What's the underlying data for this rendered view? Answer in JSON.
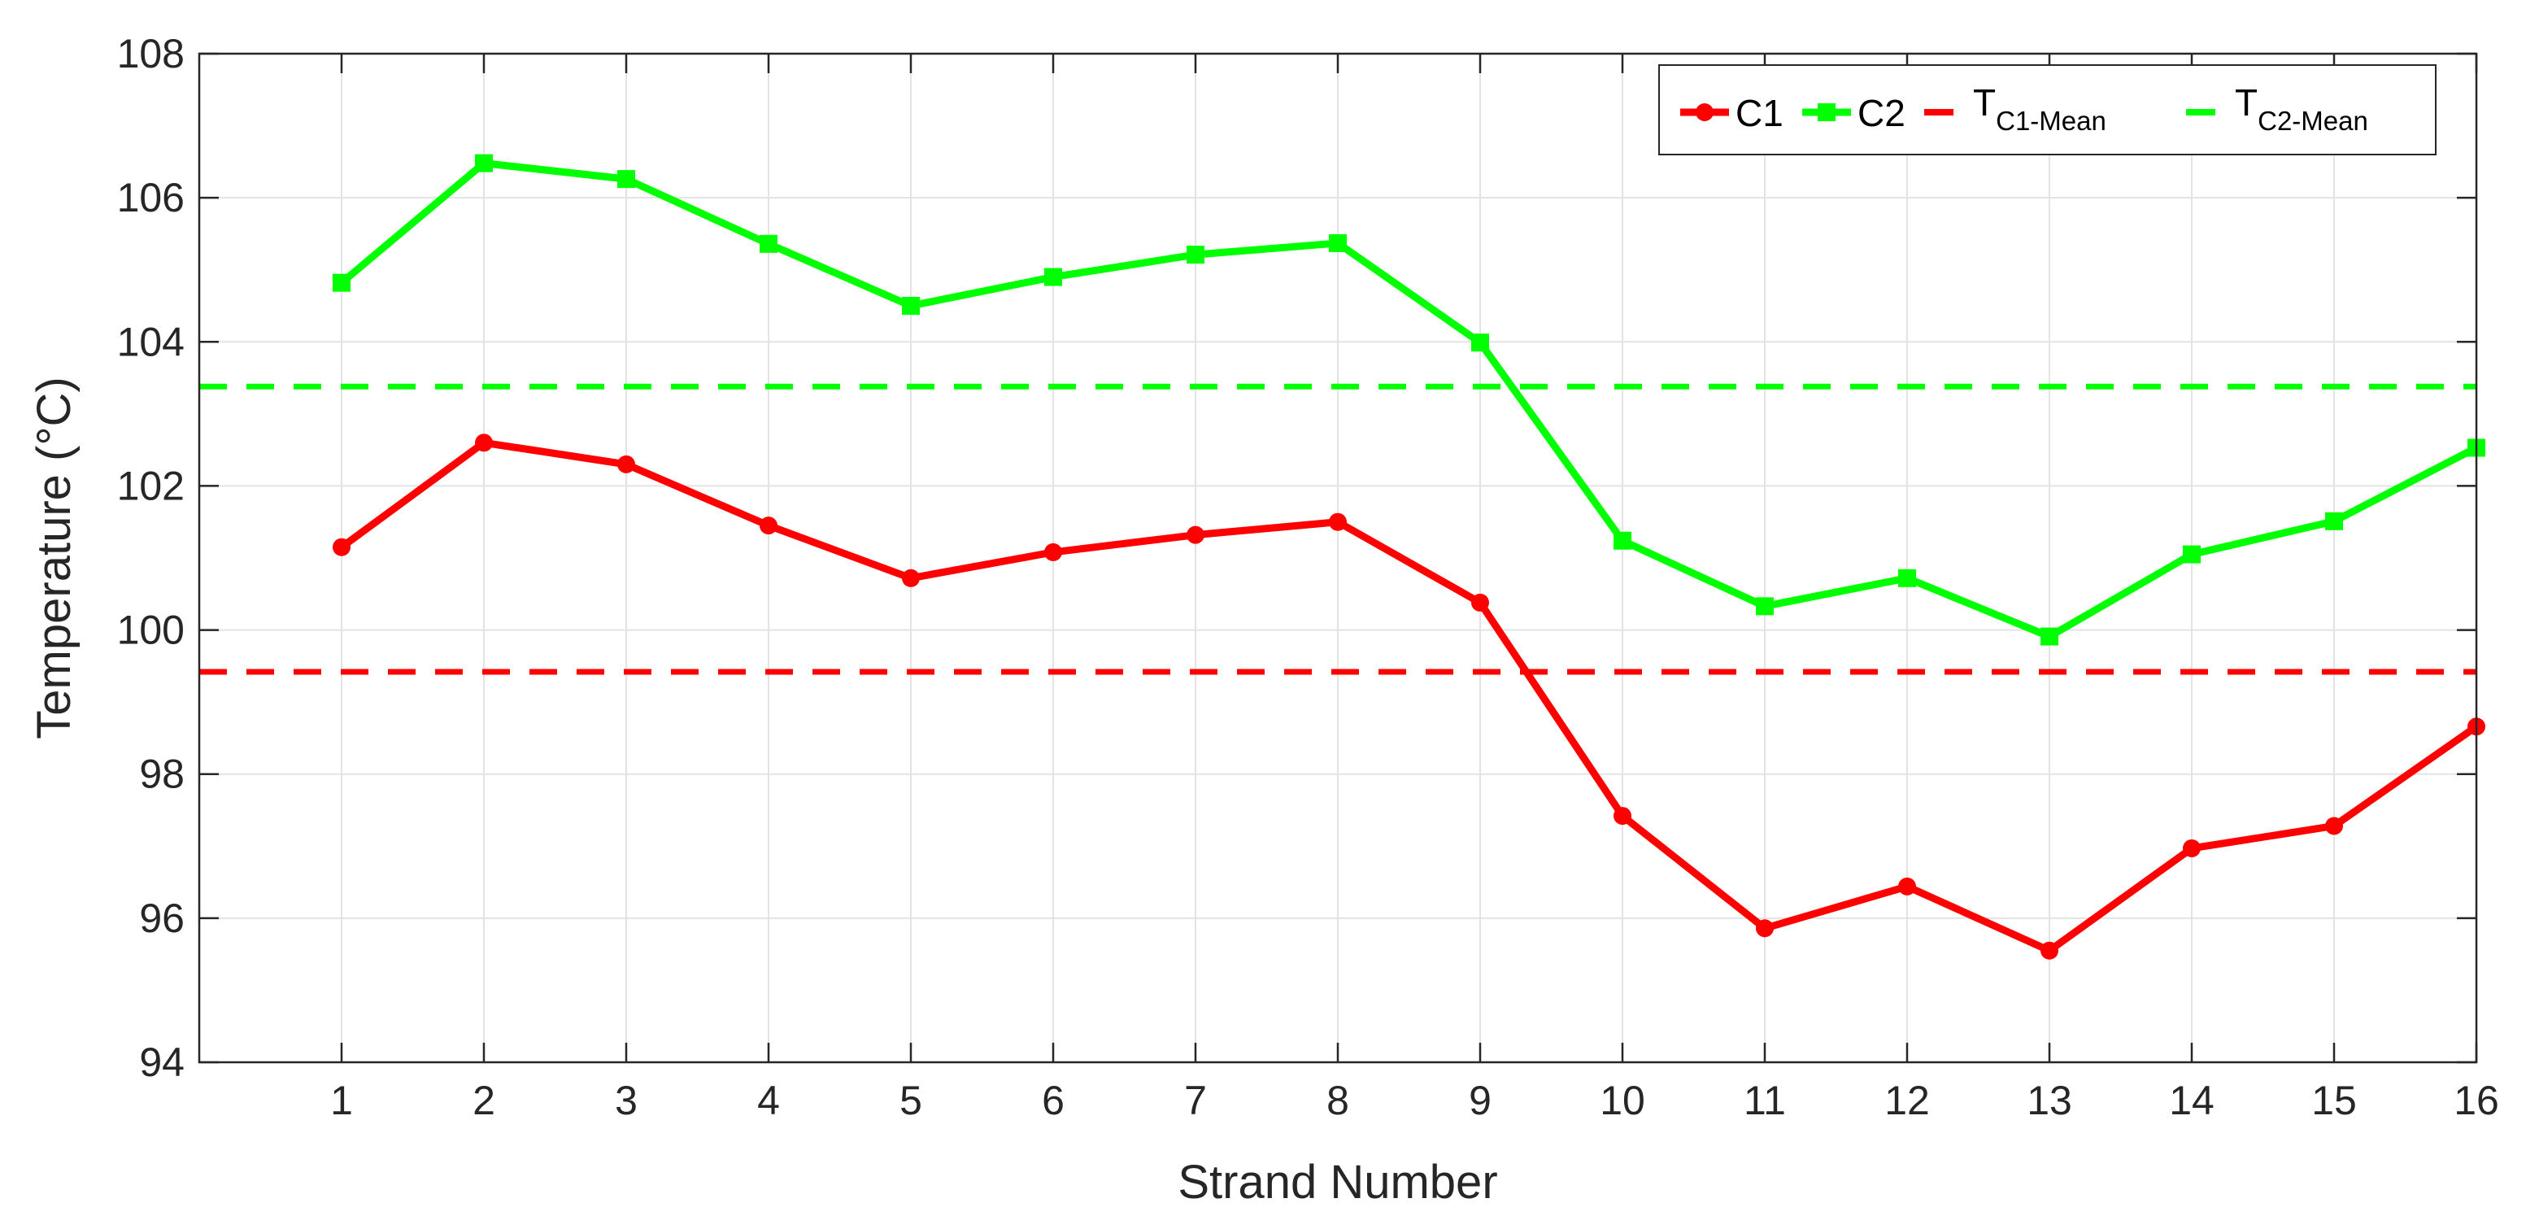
{
  "chart_data": {
    "type": "line",
    "xlabel": "Strand Number",
    "ylabel": "Temperature (°C)",
    "xlim": [
      0,
      16
    ],
    "ylim": [
      94,
      108
    ],
    "xticks": [
      1,
      2,
      3,
      4,
      5,
      6,
      7,
      8,
      9,
      10,
      11,
      12,
      13,
      14,
      15,
      16
    ],
    "yticks": [
      94,
      96,
      98,
      100,
      102,
      104,
      106,
      108
    ],
    "grid": true,
    "legend_position": "top-right",
    "x": [
      1,
      2,
      3,
      4,
      5,
      6,
      7,
      8,
      9,
      10,
      11,
      12,
      13,
      14,
      15,
      16
    ],
    "series": [
      {
        "name": "C1",
        "color": "#ff0000",
        "marker": "circle",
        "values": [
          101.15,
          102.6,
          102.3,
          101.45,
          100.72,
          101.08,
          101.32,
          101.5,
          100.38,
          97.42,
          95.86,
          96.44,
          95.55,
          96.97,
          97.28,
          98.66
        ]
      },
      {
        "name": "C2",
        "color": "#00ff00",
        "marker": "square",
        "values": [
          104.82,
          106.48,
          106.26,
          105.36,
          104.5,
          104.9,
          105.21,
          105.37,
          103.99,
          101.24,
          100.33,
          100.72,
          99.91,
          101.05,
          101.51,
          102.53
        ]
      }
    ],
    "reference_lines": [
      {
        "base": "T",
        "sub": "C1-Mean",
        "value": 99.42,
        "color": "#ff0000"
      },
      {
        "base": "T",
        "sub": "C2-Mean",
        "value": 103.38,
        "color": "#00ff00"
      }
    ]
  }
}
